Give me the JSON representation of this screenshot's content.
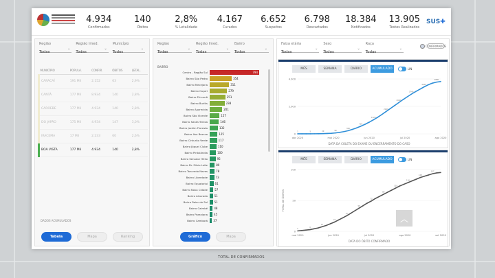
{
  "kpis": [
    {
      "value": "4.934",
      "label": "Confirmados"
    },
    {
      "value": "140",
      "label": "Óbitos"
    },
    {
      "value": "2,8%",
      "label": "% Letalidade"
    },
    {
      "value": "4.167",
      "label": "Curados"
    },
    {
      "value": "6.652",
      "label": "Suspeitos"
    },
    {
      "value": "6.798",
      "label": "Descartados"
    },
    {
      "value": "18.384",
      "label": "Notificados"
    },
    {
      "value": "13.905",
      "label": "Testes Realizados"
    }
  ],
  "brand": {
    "sus_label": "SUS",
    "colors": {
      "primary": "#1e6bd6",
      "accent": "#3c9be0",
      "band": "#1c3f6e",
      "hl": "#4caf50"
    }
  },
  "left_panel": {
    "filters": [
      {
        "label": "Região",
        "value": "Todas"
      },
      {
        "label": "Região Imed.",
        "value": "Todas"
      },
      {
        "label": "Município",
        "value": "Todos"
      }
    ],
    "columns": [
      "MUNICÍPIO",
      "POPULA.",
      "CONFIR.",
      "ÓBITOS",
      "LETAL."
    ],
    "rows": [
      [
        "CARACAÍ",
        "191 Mil",
        "2.152",
        "63",
        "2,9%"
      ],
      [
        "CANTÁ",
        "177 Mil",
        "8.934",
        "140",
        "2,8%"
      ],
      [
        "CAROEBE",
        "177 Mil",
        "4.934",
        "140",
        "2,8%"
      ],
      [
        "DO JAPÃO",
        "175 Mil",
        "4.934",
        "147",
        "3,0%"
      ],
      [
        "IRACEMA",
        "17 Mil",
        "2.233",
        "60",
        "2,6%"
      ],
      [
        "BOA VISTA",
        "177 Mil",
        "4.934",
        "140",
        "2,8%"
      ]
    ],
    "highlight_row": 5,
    "footnote": "DADOS ACUMULADOS",
    "buttons": [
      "Tabela",
      "Mapa",
      "Ranking"
    ],
    "active_button": 0
  },
  "middle_panel": {
    "filters": [
      {
        "label": "Região",
        "value": "Todas"
      },
      {
        "label": "Região Imed.",
        "value": "Todas"
      },
      {
        "label": "Bairro",
        "value": "Todos"
      }
    ],
    "title": "BAIRRO",
    "bars": [
      {
        "name": "Centro - Região Sul",
        "value": 794,
        "color": "#c62828"
      },
      {
        "name": "Bairro São Pedro",
        "value": 354,
        "color": "#c9a227"
      },
      {
        "name": "Bairro Mecejana",
        "value": 311,
        "color": "#b9a92a"
      },
      {
        "name": "Bairro Caçari",
        "value": 279,
        "color": "#a8ab2f"
      },
      {
        "name": "Bairro Pricumã",
        "value": 251,
        "color": "#96ad34"
      },
      {
        "name": "Bairro Buritis",
        "value": 238,
        "color": "#83ae3a"
      },
      {
        "name": "Bairro Aparecida",
        "value": 201,
        "color": "#6fae40"
      },
      {
        "name": "Bairro São Vicente",
        "value": 157,
        "color": "#5aab47"
      },
      {
        "name": "Bairro Santa Tereza",
        "value": 146,
        "color": "#48a84d"
      },
      {
        "name": "Bairro Jardim Floresta",
        "value": 132,
        "color": "#3ca552"
      },
      {
        "name": "Bairro Asa Branca",
        "value": 125,
        "color": "#35a257"
      },
      {
        "name": "Bairro Cinturão Verde",
        "value": 117,
        "color": "#2f9f5b"
      },
      {
        "name": "Bairro Jóquei Clube",
        "value": 110,
        "color": "#2b9c5e"
      },
      {
        "name": "Bairro Pintolândia",
        "value": 100,
        "color": "#289a60"
      },
      {
        "name": "Bairro Senador Hélio",
        "value": 95,
        "color": "#259862"
      },
      {
        "name": "Bairro Dr. Silvio Leite",
        "value": 80,
        "color": "#239663"
      },
      {
        "name": "Bairro Tancredo Neves",
        "value": 78,
        "color": "#219464"
      },
      {
        "name": "Bairro Liberdade",
        "value": 73,
        "color": "#209365"
      },
      {
        "name": "Bairro Equatorial",
        "value": 61,
        "color": "#1f9266"
      },
      {
        "name": "Bairro Nova Cidade",
        "value": 57,
        "color": "#1e9167"
      },
      {
        "name": "Bairro Alvorada",
        "value": 51,
        "color": "#1d9068"
      },
      {
        "name": "Bairro Raiar do Sol",
        "value": 51,
        "color": "#1c8f68"
      },
      {
        "name": "Bairro Caimbé",
        "value": 48,
        "color": "#1b8e69"
      },
      {
        "name": "Bairro Paraviana",
        "value": 45,
        "color": "#1a8d69"
      },
      {
        "name": "Bairro Cambará",
        "value": 37,
        "color": "#198c6a"
      }
    ],
    "total_label": "TOTAL DE CONFIRMADOS",
    "buttons": [
      "Gráfico",
      "Mapa"
    ],
    "active_button": 0
  },
  "right_panel": {
    "filters": [
      {
        "label": "Faixa etária",
        "value": "Todas"
      },
      {
        "label": "Sexo",
        "value": "Todos"
      },
      {
        "label": "Raça",
        "value": "Todas"
      }
    ],
    "radio_label": "CONFIRMADOS",
    "tabs": [
      "MÊS",
      "SEMANA",
      "DIÁRIO",
      "ACUMULADO"
    ],
    "active_tab": 3,
    "toggle_label": "LIN",
    "chart1": {
      "xlabel": "DATA DA COLETA DO EXAME OU ENCERRAMENTO DO CASO",
      "yticks": [
        "4.000",
        "2.000",
        "0"
      ],
      "xticks": [
        "abr 2020",
        "mai 2020",
        "jun 2020",
        "jul 2020",
        "ago 2020"
      ],
      "values": [
        1,
        2,
        3,
        5,
        8,
        12,
        20,
        35,
        55,
        90,
        140,
        210,
        300,
        420,
        560,
        720,
        900,
        1100,
        1320,
        1560,
        1820,
        2100,
        2380,
        2660,
        2940,
        3220,
        3480,
        3740,
        3980,
        4200,
        4420,
        4620,
        4780,
        4880,
        4934
      ]
    },
    "chart2": {
      "xlabel": "DATA DO ÓBITO CONFIRMADO",
      "ylabel": "TOTAL DE ÓBITOS",
      "yticks": [
        "100",
        "50",
        "0"
      ],
      "xticks": [
        "mai 2020",
        "jun 2020",
        "jul 2020",
        "ago 2020",
        "set 2020"
      ],
      "values": [
        1,
        2,
        3,
        4,
        6,
        8,
        11,
        14,
        18,
        22,
        27,
        32,
        37,
        43,
        49,
        55,
        61,
        67,
        72,
        78,
        83,
        88,
        93,
        98,
        103,
        108,
        112,
        116,
        120,
        124,
        128,
        131,
        134,
        137,
        139,
        140
      ]
    }
  }
}
